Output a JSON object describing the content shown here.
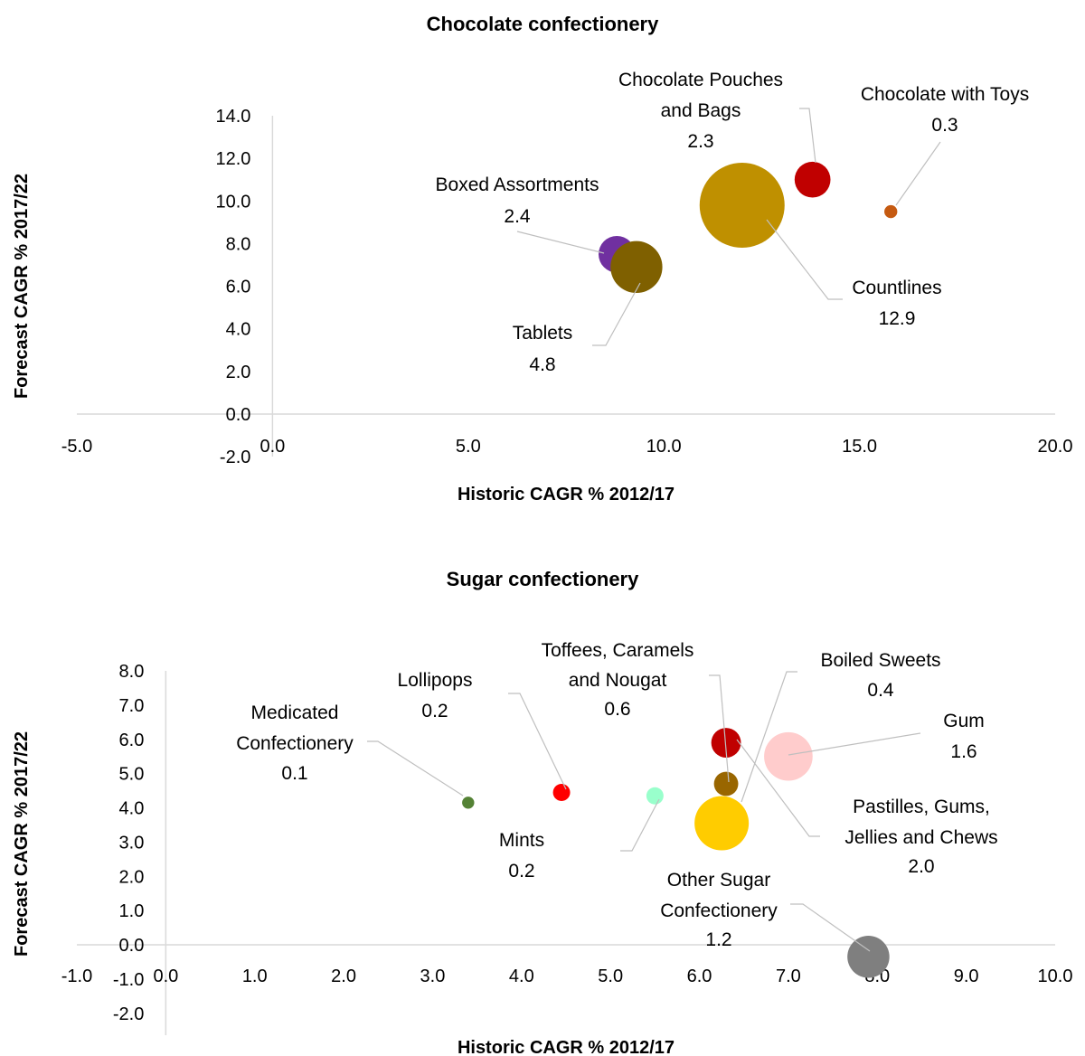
{
  "chart_data": [
    {
      "type": "bubble",
      "title": "Chocolate confectionery",
      "xlabel": "Historic CAGR % 2012/17",
      "ylabel": "Forecast CAGR % 2017/22",
      "xlim": [
        -5,
        20
      ],
      "ylim": [
        -2,
        14
      ],
      "x_ticks": [
        "-5.0",
        "0.0",
        "5.0",
        "10.0",
        "15.0",
        "20.0"
      ],
      "y_ticks": [
        "-2.0",
        "0.0",
        "2.0",
        "4.0",
        "6.0",
        "8.0",
        "10.0",
        "12.0",
        "14.0"
      ],
      "series": [
        {
          "name": "Boxed Assortments",
          "x": 8.8,
          "y": 7.5,
          "size": 2.4,
          "size_label": "2.4",
          "color": "#7030a0"
        },
        {
          "name": "Tablets",
          "x": 9.3,
          "y": 6.9,
          "size": 4.8,
          "size_label": "4.8",
          "color": "#7f6000"
        },
        {
          "name": "Countlines",
          "x": 12.0,
          "y": 9.8,
          "size": 12.9,
          "size_label": "12.9",
          "color": "#bf9000"
        },
        {
          "name": "Chocolate Pouches and Bags",
          "x": 13.8,
          "y": 11.0,
          "size": 2.3,
          "size_label": "2.3",
          "color": "#c00000"
        },
        {
          "name": "Chocolate with Toys",
          "x": 15.8,
          "y": 9.5,
          "size": 0.3,
          "size_label": "0.3",
          "color": "#c55a11"
        }
      ]
    },
    {
      "type": "bubble",
      "title": "Sugar confectionery",
      "xlabel": "Historic CAGR % 2012/17",
      "ylabel": "Forecast CAGR % 2017/22",
      "xlim": [
        -1,
        10
      ],
      "ylim": [
        -2,
        8
      ],
      "x_ticks": [
        "-1.0",
        "0.0",
        "1.0",
        "2.0",
        "3.0",
        "4.0",
        "5.0",
        "6.0",
        "7.0",
        "8.0",
        "9.0",
        "10.0"
      ],
      "y_ticks": [
        "-2.0",
        "-1.0",
        "0.0",
        "1.0",
        "2.0",
        "3.0",
        "4.0",
        "5.0",
        "6.0",
        "7.0",
        "8.0"
      ],
      "series": [
        {
          "name": "Medicated Confectionery",
          "x": 3.4,
          "y": 4.15,
          "size": 0.1,
          "size_label": "0.1",
          "color": "#548235"
        },
        {
          "name": "Lollipops",
          "x": 4.45,
          "y": 4.45,
          "size": 0.2,
          "size_label": "0.2",
          "color": "#ff0000"
        },
        {
          "name": "Mints",
          "x": 5.5,
          "y": 4.35,
          "size": 0.2,
          "size_label": "0.2",
          "color": "#99ffcc"
        },
        {
          "name": "Toffees, Caramels and Nougat",
          "x": 6.3,
          "y": 5.9,
          "size": 0.6,
          "size_label": "0.6",
          "color": "#c00000"
        },
        {
          "name": "Boiled Sweets",
          "x": 6.3,
          "y": 4.7,
          "size": 0.4,
          "size_label": "0.4",
          "color": "#996600"
        },
        {
          "name": "Gum",
          "x": 7.0,
          "y": 5.5,
          "size": 1.6,
          "size_label": "1.6",
          "color": "#ffcccc"
        },
        {
          "name": "Pastilles, Gums, Jellies and Chews",
          "x": 6.25,
          "y": 3.55,
          "size": 2.0,
          "size_label": "2.0",
          "color": "#ffcc00"
        },
        {
          "name": "Other Sugar Confectionery",
          "x": 7.9,
          "y": -0.35,
          "size": 1.2,
          "size_label": "1.2",
          "color": "#7f7f7f"
        }
      ]
    }
  ]
}
